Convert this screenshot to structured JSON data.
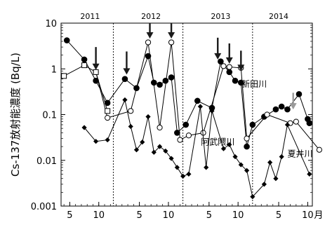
{
  "chart_data": {
    "type": "line",
    "title": "",
    "ylabel": "Cs-137放射能濃度 (Bq/L)",
    "xlabel": "",
    "y_scale": "log",
    "ylim": [
      0.001,
      10
    ],
    "y_ticks": [
      {
        "value": 10,
        "label": "10"
      },
      {
        "value": 1,
        "label": "1"
      },
      {
        "value": 0.1,
        "label": "0.1"
      },
      {
        "value": 0.01,
        "label": "0.01"
      },
      {
        "value": 0.001,
        "label": "0.001"
      }
    ],
    "x_unit": "month index (1 = Jan 2011)",
    "xlim": [
      3.5,
      46.8
    ],
    "x_ticks": [
      {
        "value": 5,
        "label": "5"
      },
      {
        "value": 10,
        "label": "10"
      },
      {
        "value": 17,
        "label": "5"
      },
      {
        "value": 22,
        "label": "10"
      },
      {
        "value": 29,
        "label": "5"
      },
      {
        "value": 34,
        "label": "10"
      },
      {
        "value": 41,
        "label": "5"
      },
      {
        "value": 46,
        "label": "10"
      }
    ],
    "x_unit_label": "月",
    "years": [
      {
        "label": "2011",
        "center": 8.5
      },
      {
        "label": "2012",
        "center": 19
      },
      {
        "label": "2013",
        "center": 31
      },
      {
        "label": "2014",
        "center": 41
      }
    ],
    "year_boundaries": [
      12.5,
      24.5,
      36.5
    ],
    "series": [
      {
        "name": "新田川",
        "marker": "filled-circle",
        "points": [
          [
            4.5,
            4.2
          ],
          [
            7.5,
            1.6
          ],
          [
            9.5,
            0.55
          ],
          [
            11.5,
            0.18
          ],
          [
            14.5,
            0.6
          ],
          [
            16.5,
            0.38
          ],
          [
            18.5,
            1.9
          ],
          [
            19.5,
            0.5
          ],
          [
            20.5,
            0.45
          ],
          [
            21.5,
            0.55
          ],
          [
            22.5,
            0.65
          ],
          [
            23.5,
            0.04
          ],
          [
            25,
            0.06
          ],
          [
            27,
            0.2
          ],
          [
            29.5,
            0.14
          ],
          [
            31,
            1.45
          ],
          [
            32.5,
            0.85
          ],
          [
            33.5,
            0.55
          ],
          [
            34.5,
            0.5
          ],
          [
            35.5,
            0.02
          ],
          [
            36.5,
            0.06
          ],
          [
            38.5,
            0.09
          ],
          [
            40.5,
            0.13
          ],
          [
            41.5,
            0.15
          ],
          [
            42.5,
            0.13
          ],
          [
            44.5,
            0.28
          ],
          [
            46,
            0.08
          ],
          [
            46.3,
            0.065
          ]
        ]
      },
      {
        "name": "阿武隈川",
        "marker": "open-circle",
        "points": [
          [
            9.5,
            0.85
          ],
          [
            11.5,
            0.085
          ],
          [
            15.5,
            0.12
          ],
          [
            18.5,
            3.8
          ],
          [
            20.5,
            0.052
          ],
          [
            22.5,
            3.8
          ],
          [
            24,
            0.028
          ],
          [
            25.5,
            0.035
          ],
          [
            28,
            0.04
          ],
          [
            31.5,
            1.15
          ],
          [
            32.5,
            1.1
          ],
          [
            34.5,
            1.05
          ],
          [
            35.5,
            0.03
          ],
          [
            39,
            0.1
          ],
          [
            43,
            0.065
          ],
          [
            44,
            0.07
          ],
          [
            48,
            0.017
          ]
        ]
      },
      {
        "name": "",
        "marker": "open-square",
        "points": [
          [
            4,
            0.7
          ],
          [
            7.5,
            1.2
          ],
          [
            9.5,
            0.85
          ],
          [
            11.5,
            0.12
          ]
        ]
      },
      {
        "name": "夏井川",
        "marker": "filled-diamond",
        "points": [
          [
            7.5,
            0.052
          ],
          [
            9.5,
            0.026
          ],
          [
            11.5,
            0.028
          ],
          [
            14.5,
            0.21
          ],
          [
            15.5,
            0.055
          ],
          [
            16.5,
            0.017
          ],
          [
            17.5,
            0.025
          ],
          [
            18.5,
            0.09
          ],
          [
            19.5,
            0.015
          ],
          [
            20.5,
            0.02
          ],
          [
            21.5,
            0.016
          ],
          [
            22.5,
            0.011
          ],
          [
            23.5,
            0.007
          ],
          [
            24.5,
            0.0045
          ],
          [
            25.5,
            0.005
          ],
          [
            27.5,
            0.15
          ],
          [
            28.5,
            0.007
          ],
          [
            29.5,
            0.12
          ],
          [
            31.5,
            0.018
          ],
          [
            32.5,
            0.022
          ],
          [
            33.5,
            0.012
          ],
          [
            34.5,
            0.008
          ],
          [
            35.5,
            0.006
          ],
          [
            36.5,
            0.0016
          ],
          [
            38.5,
            0.003
          ],
          [
            39.5,
            0.009
          ],
          [
            40.5,
            0.004
          ],
          [
            41.5,
            0.012
          ],
          [
            42.5,
            0.06
          ],
          [
            46.3,
            0.005
          ]
        ]
      }
    ],
    "arrows": [
      {
        "x": 9.5,
        "y_top": 3.0,
        "y_tip": 0.95,
        "color": "#1a1a1a"
      },
      {
        "x": 14.8,
        "y_top": 2.4,
        "y_tip": 0.75,
        "color": "#1a1a1a"
      },
      {
        "x": 18.8,
        "y_top": 10,
        "y_tip": 4.6,
        "color": "#1a1a1a"
      },
      {
        "x": 22.5,
        "y_top": 10,
        "y_tip": 4.6,
        "color": "#1a1a1a"
      },
      {
        "x": 30.5,
        "y_top": 4.8,
        "y_tip": 1.6,
        "color": "#1a1a1a"
      },
      {
        "x": 32.5,
        "y_top": 3.6,
        "y_tip": 1.3,
        "color": "#1a1a1a"
      },
      {
        "x": 34.5,
        "y_top": 2.5,
        "y_tip": 0.9,
        "color": "#1a1a1a"
      },
      {
        "x": 43.5,
        "y_top": 0.3,
        "y_tip": 0.13,
        "color": "#9a9a9a"
      }
    ],
    "annotations": [
      {
        "text": "新田川",
        "x": 34.6,
        "y": 0.4
      },
      {
        "text": "阿武隈川",
        "x": 27.6,
        "y": 0.022
      },
      {
        "text": "夏井川",
        "x": 42.5,
        "y": 0.012
      }
    ],
    "grid": false,
    "legend": "none"
  }
}
